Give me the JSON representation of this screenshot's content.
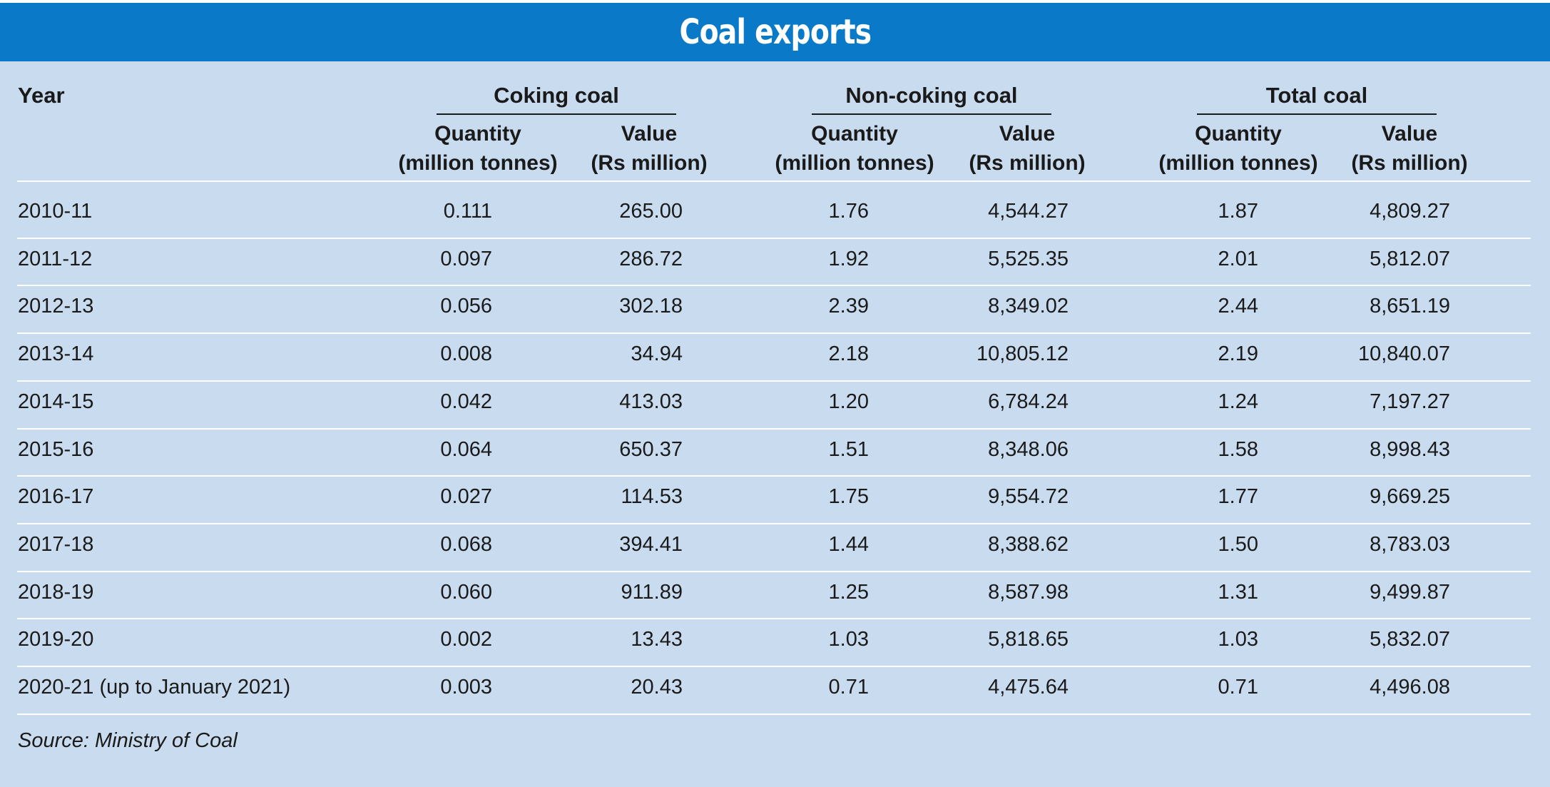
{
  "title": "Coal exports",
  "headers": {
    "year": "Year",
    "groups": [
      "Coking coal",
      "Non-coking coal",
      "Total coal"
    ],
    "quantity": [
      "Quantity",
      "(million tonnes)"
    ],
    "value": [
      "Value",
      "(Rs million)"
    ]
  },
  "rows": [
    [
      "2010-11",
      "0.111",
      "265.00",
      "1.76",
      "4,544.27",
      "1.87",
      "4,809.27"
    ],
    [
      "2011-12",
      "0.097",
      "286.72",
      "1.92",
      "5,525.35",
      "2.01",
      "5,812.07"
    ],
    [
      "2012-13",
      "0.056",
      "302.18",
      "2.39",
      "8,349.02",
      "2.44",
      "8,651.19"
    ],
    [
      "2013-14",
      "0.008",
      "34.94",
      "2.18",
      "10,805.12",
      "2.19",
      "10,840.07"
    ],
    [
      "2014-15",
      "0.042",
      "413.03",
      "1.20",
      "6,784.24",
      "1.24",
      "7,197.27"
    ],
    [
      "2015-16",
      "0.064",
      "650.37",
      "1.51",
      "8,348.06",
      "1.58",
      "8,998.43"
    ],
    [
      "2016-17",
      "0.027",
      "114.53",
      "1.75",
      "9,554.72",
      "1.77",
      "9,669.25"
    ],
    [
      "2017-18",
      "0.068",
      "394.41",
      "1.44",
      "8,388.62",
      "1.50",
      "8,783.03"
    ],
    [
      "2018-19",
      "0.060",
      "911.89",
      "1.25",
      "8,587.98",
      "1.31",
      "9,499.87"
    ],
    [
      "2019-20",
      "0.002",
      "13.43",
      "1.03",
      "5,818.65",
      "1.03",
      "5,832.07"
    ],
    [
      "2020-21 (up to January 2021)",
      "0.003",
      "20.43",
      "0.71",
      "4,475.64",
      "0.71",
      "4,496.08"
    ]
  ],
  "source": "Source: Ministry of Coal",
  "colors": {
    "header_band": "#0a7ac8",
    "panel": "#c9dcef",
    "row_rule": "#ffffff"
  }
}
